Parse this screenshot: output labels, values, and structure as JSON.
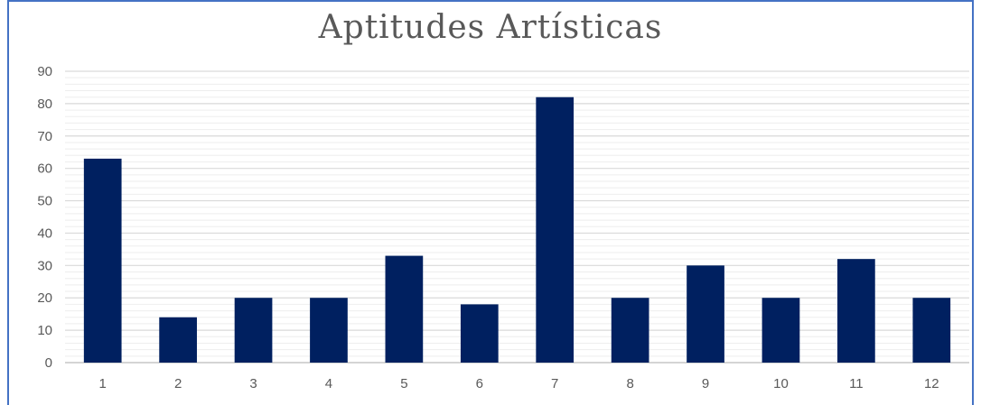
{
  "chart_data": {
    "type": "bar",
    "title": "Aptitudes Artísticas",
    "xlabel": "",
    "ylabel": "",
    "categories": [
      "1",
      "2",
      "3",
      "4",
      "5",
      "6",
      "7",
      "8",
      "9",
      "10",
      "11",
      "12"
    ],
    "values": [
      63,
      14,
      20,
      20,
      33,
      18,
      82,
      20,
      30,
      20,
      32,
      20
    ],
    "ylim": [
      0,
      90
    ],
    "yticks": [
      0,
      10,
      20,
      30,
      40,
      50,
      60,
      70,
      80,
      90
    ],
    "grid": true,
    "colors": {
      "bar": "#002060",
      "grid": "#d9d9d9",
      "frame": "#4472c4",
      "text": "#595959"
    }
  }
}
